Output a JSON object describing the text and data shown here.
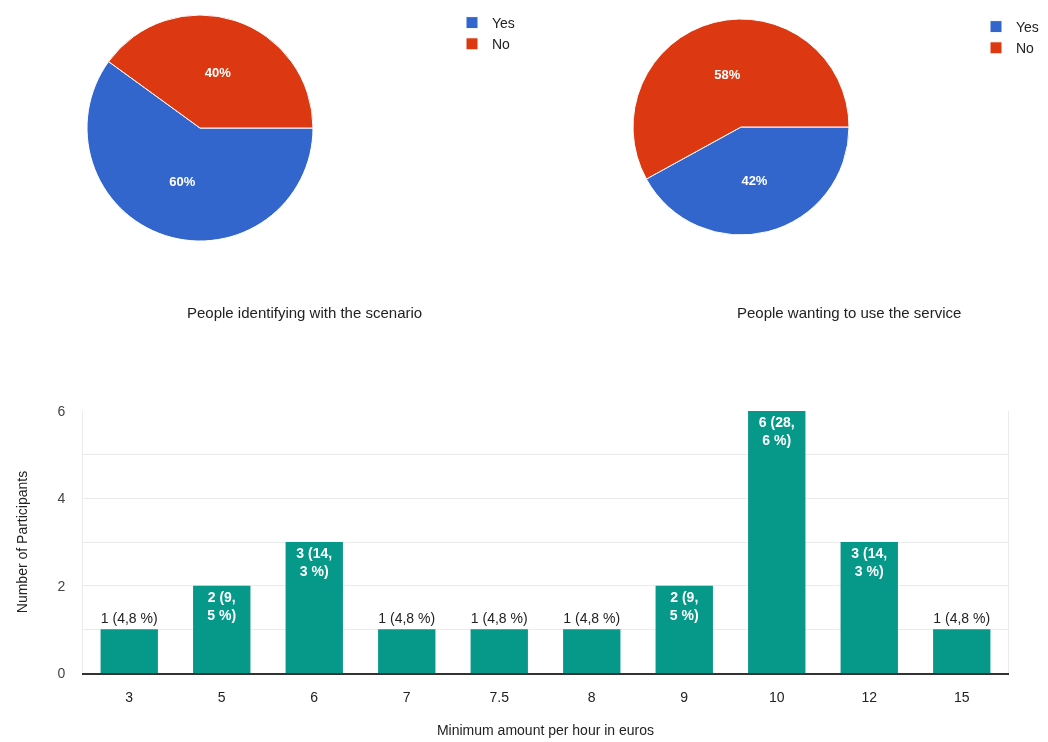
{
  "chart_data": [
    {
      "type": "pie",
      "title": "People identifying with the scenario",
      "categories": [
        "Yes",
        "No"
      ],
      "values": [
        60,
        40
      ],
      "colors": [
        "#3366cc",
        "#dc3912"
      ],
      "value_labels": [
        "60%",
        "40%"
      ],
      "legend": "top right"
    },
    {
      "type": "pie",
      "title": "People wanting to use the service",
      "categories": [
        "Yes",
        "No"
      ],
      "values": [
        42,
        58
      ],
      "colors": [
        "#3366cc",
        "#dc3912"
      ],
      "value_labels": [
        "42%",
        "58%"
      ],
      "legend": "top right"
    },
    {
      "type": "bar",
      "categories": [
        "3",
        "5",
        "6",
        "7",
        "7.5",
        "8",
        "9",
        "10",
        "12",
        "15"
      ],
      "values": [
        1,
        2,
        3,
        1,
        1,
        1,
        2,
        6,
        3,
        1
      ],
      "color": "#069888",
      "value_labels": [
        "1 (4,8 %)",
        "2 (9,5 %)",
        "3 (14,3 %)",
        "1 (4,8 %)",
        "1 (4,8 %)",
        "1 (4,8 %)",
        "2 (9,5 %)",
        "6 (28,6 %)",
        "3 (14,3 %)",
        "1 (4,8 %)"
      ],
      "xlabel": "Minimum amount per hour in euros",
      "ylabel": "Number of Participants",
      "ylim": [
        0,
        6
      ],
      "yticks": [
        0,
        {
          "value": 1,
          "label": null
        },
        2,
        {
          "value": 3,
          "label": null
        },
        4,
        {
          "value": 5,
          "label": null
        },
        6
      ],
      "grid": "y"
    }
  ]
}
